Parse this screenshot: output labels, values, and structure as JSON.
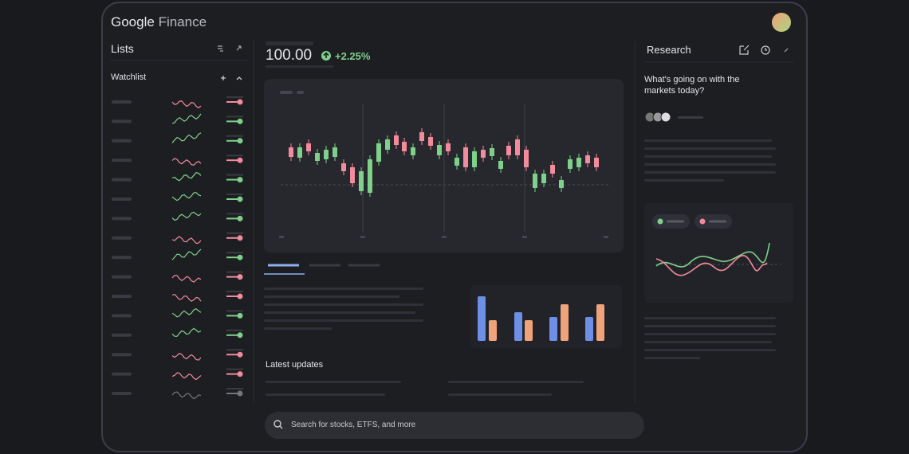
{
  "header": {
    "brand": "Google",
    "product": "Finance"
  },
  "lists": {
    "title": "Lists",
    "watchlist": "Watchlist"
  },
  "quote": {
    "price": "100.00",
    "change": "+2.25%"
  },
  "research": {
    "title": "Research",
    "question": "What's going on with the markets today?"
  },
  "updates": {
    "title": "Latest updates"
  },
  "search": {
    "placeholder": "Search for stocks, ETFS, and more"
  }
}
